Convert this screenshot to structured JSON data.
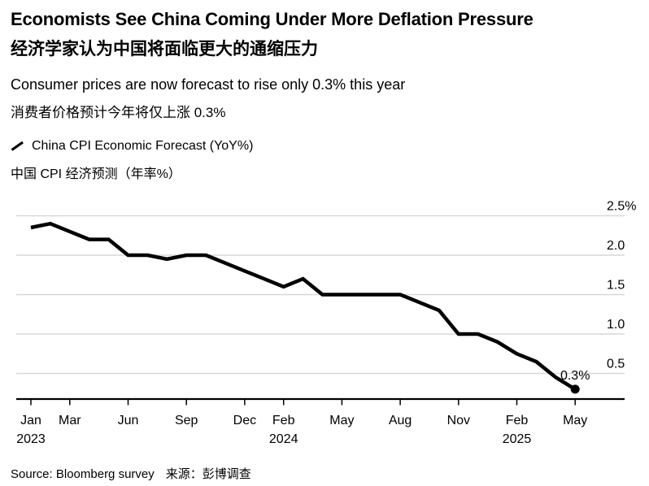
{
  "header": {
    "title_en": "Economists See China Coming Under More Deflation Pressure",
    "title_cn": "经济学家认为中国将面临更大的通缩压力",
    "subtitle_en": "Consumer prices are now forecast to rise only 0.3% this year",
    "subtitle_cn": "消费者价格预计今年将仅上涨 0.3%"
  },
  "legend": {
    "mark": "diagonal-line-icon",
    "label_en": "China CPI Economic Forecast (YoY%)",
    "label_cn": "中国 CPI 经济预测（年率%）"
  },
  "chart_data": {
    "type": "line",
    "title": "China CPI Economic Forecast (YoY%)",
    "unit": "%",
    "grid": true,
    "legend_position": "top-left",
    "x": [
      "Jan 2023",
      "Feb 2023",
      "Mar 2023",
      "Apr 2023",
      "May 2023",
      "Jun 2023",
      "Jul 2023",
      "Aug 2023",
      "Sep 2023",
      "Oct 2023",
      "Nov 2023",
      "Dec 2023",
      "Jan 2024",
      "Feb 2024",
      "Mar 2024",
      "Apr 2024",
      "May 2024",
      "Jun 2024",
      "Jul 2024",
      "Aug 2024",
      "Sep 2024",
      "Oct 2024",
      "Nov 2024",
      "Dec 2024",
      "Jan 2025",
      "Feb 2025",
      "Mar 2025",
      "Apr 2025",
      "May 2025"
    ],
    "values": [
      2.35,
      2.4,
      2.3,
      2.2,
      2.2,
      2.0,
      2.0,
      1.95,
      2.0,
      2.0,
      1.9,
      1.8,
      1.7,
      1.6,
      1.7,
      1.5,
      1.5,
      1.5,
      1.5,
      1.5,
      1.4,
      1.3,
      1.0,
      1.0,
      0.9,
      0.75,
      0.65,
      0.45,
      0.3
    ],
    "yticks": [
      {
        "value": 2.5,
        "label": "2.5%"
      },
      {
        "value": 2.0,
        "label": "2.0"
      },
      {
        "value": 1.5,
        "label": "1.5"
      },
      {
        "value": 1.0,
        "label": "1.0"
      },
      {
        "value": 0.5,
        "label": "0.5"
      }
    ],
    "xticks": [
      {
        "index": 0,
        "label": "Jan",
        "year": "2023"
      },
      {
        "index": 2,
        "label": "Mar"
      },
      {
        "index": 5,
        "label": "Jun"
      },
      {
        "index": 8,
        "label": "Sep"
      },
      {
        "index": 11,
        "label": "Dec"
      },
      {
        "index": 13,
        "label": "Feb",
        "year": "2024"
      },
      {
        "index": 16,
        "label": "May"
      },
      {
        "index": 19,
        "label": "Aug"
      },
      {
        "index": 22,
        "label": "Nov"
      },
      {
        "index": 25,
        "label": "Feb",
        "year": "2025"
      },
      {
        "index": 28,
        "label": "May"
      }
    ],
    "end_annotation": "0.3%",
    "ylim_visible": [
      0.2,
      2.76
    ],
    "colors": {
      "line": "#000000",
      "grid": "#d7d7d7",
      "axis": "#000000",
      "text": "#000000"
    }
  },
  "source": {
    "en": "Source: Bloomberg survey",
    "cn": "来源：彭博调查"
  }
}
